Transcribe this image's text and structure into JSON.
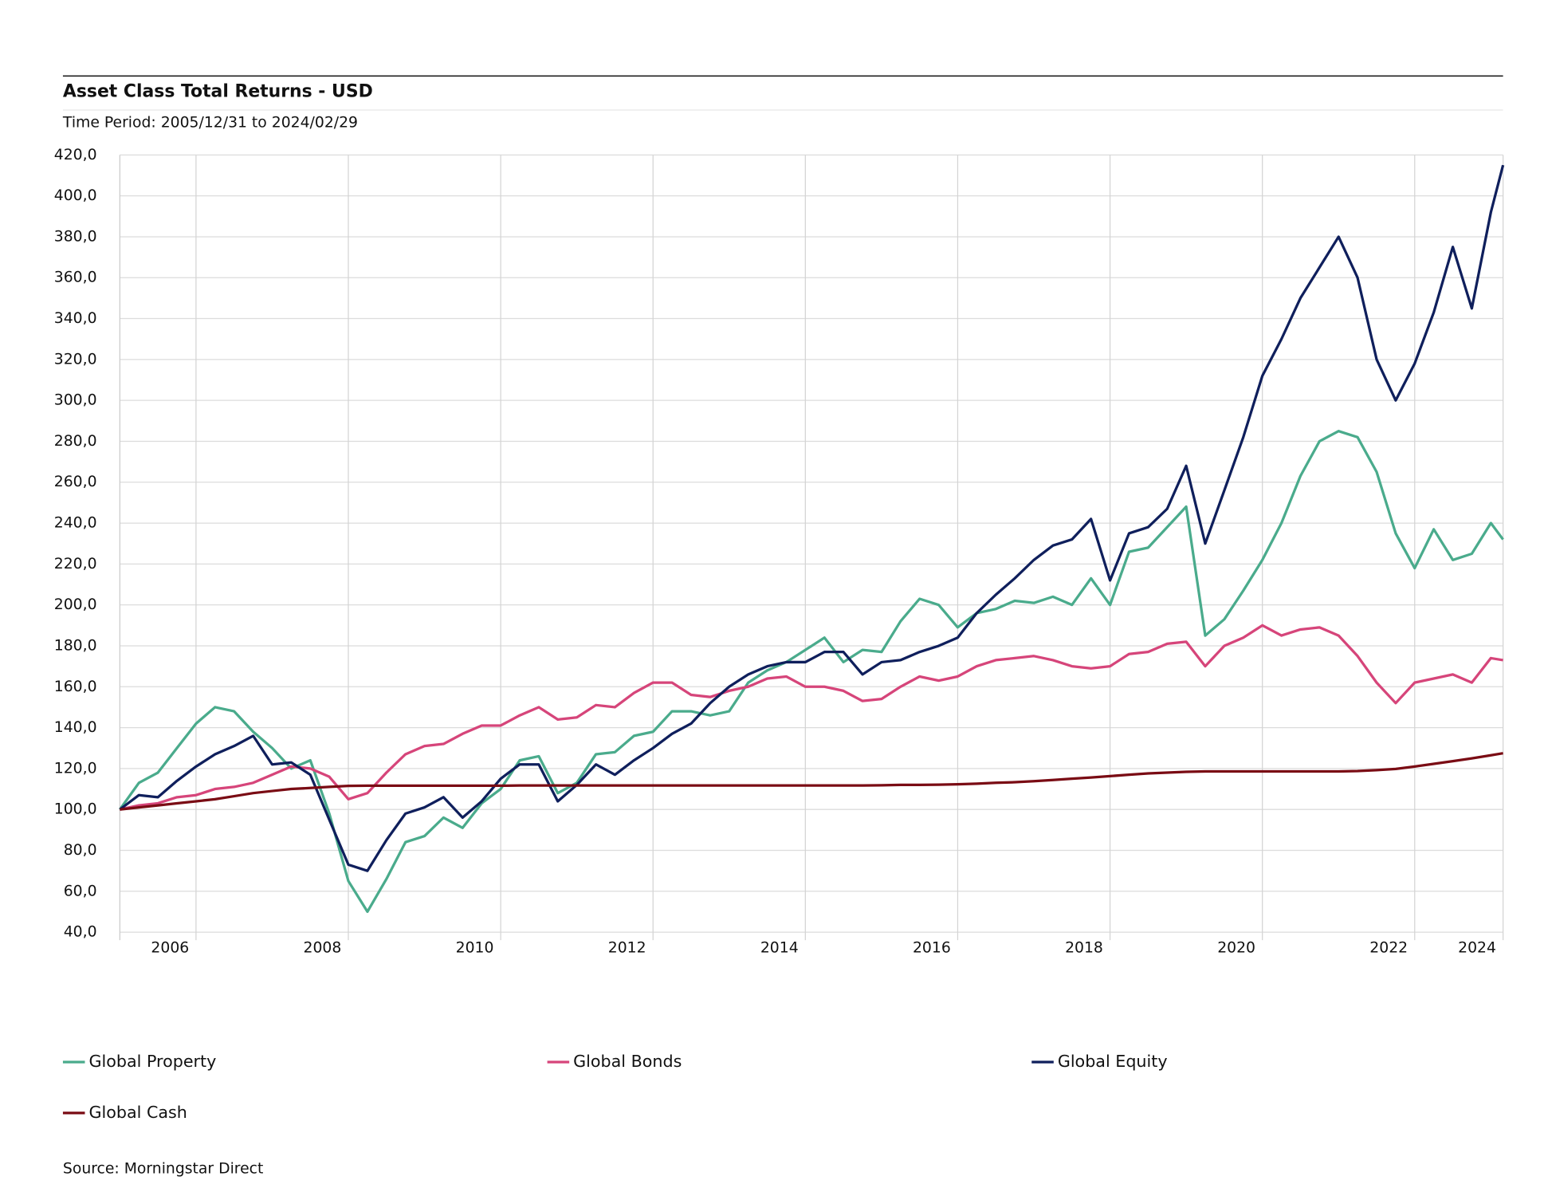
{
  "chart_data": {
    "type": "line",
    "title": "Asset Class Total Returns - USD",
    "subtitle": "Time Period: 2005/12/31 to 2024/02/29",
    "source": "Source: Morningstar Direct",
    "x": [
      2006,
      2006.25,
      2006.5,
      2006.75,
      2007,
      2007.25,
      2007.5,
      2007.75,
      2008,
      2008.25,
      2008.5,
      2008.75,
      2009,
      2009.25,
      2009.5,
      2009.75,
      2010,
      2010.25,
      2010.5,
      2010.75,
      2011,
      2011.25,
      2011.5,
      2011.75,
      2012,
      2012.25,
      2012.5,
      2012.75,
      2013,
      2013.25,
      2013.5,
      2013.75,
      2014,
      2014.25,
      2014.5,
      2014.75,
      2015,
      2015.25,
      2015.5,
      2015.75,
      2016,
      2016.25,
      2016.5,
      2016.75,
      2017,
      2017.25,
      2017.5,
      2017.75,
      2018,
      2018.25,
      2018.5,
      2018.75,
      2019,
      2019.25,
      2019.5,
      2019.75,
      2020,
      2020.25,
      2020.5,
      2020.75,
      2021,
      2021.25,
      2021.5,
      2021.75,
      2022,
      2022.25,
      2022.5,
      2022.75,
      2023,
      2023.25,
      2023.5,
      2023.75,
      2024,
      2024.16
    ],
    "series": [
      {
        "name": "Global Property",
        "color": "#4aab8c",
        "values": [
          100,
          113,
          118,
          130,
          142,
          150,
          148,
          138,
          130,
          120,
          124,
          98,
          65,
          50,
          66,
          84,
          87,
          96,
          91,
          103,
          110,
          124,
          126,
          108,
          113,
          127,
          128,
          136,
          138,
          148,
          148,
          146,
          148,
          162,
          168,
          172,
          178,
          184,
          172,
          178,
          177,
          192,
          203,
          200,
          189,
          196,
          198,
          202,
          201,
          204,
          200,
          213,
          200,
          226,
          228,
          238,
          248,
          185,
          193,
          207,
          222,
          240,
          263,
          280,
          285,
          282,
          265,
          235,
          218,
          237,
          222,
          225,
          240,
          232
        ]
      },
      {
        "name": "Global Bonds",
        "color": "#d6457a",
        "values": [
          100,
          102,
          103,
          106,
          107,
          110,
          111,
          113,
          117,
          121,
          120,
          116,
          105,
          108,
          118,
          127,
          131,
          132,
          137,
          141,
          141,
          146,
          150,
          144,
          145,
          151,
          150,
          157,
          162,
          162,
          156,
          155,
          158,
          160,
          164,
          165,
          160,
          160,
          158,
          153,
          154,
          160,
          165,
          163,
          165,
          170,
          173,
          174,
          175,
          173,
          170,
          169,
          170,
          176,
          177,
          181,
          182,
          170,
          180,
          184,
          190,
          185,
          188,
          189,
          185,
          175,
          162,
          152,
          162,
          164,
          166,
          162,
          174,
          173
        ]
      },
      {
        "name": "Global Equity",
        "color": "#0f1f5c",
        "values": [
          100,
          107,
          106,
          114,
          121,
          127,
          131,
          136,
          122,
          123,
          117,
          95,
          73,
          70,
          85,
          98,
          101,
          106,
          96,
          104,
          115,
          122,
          122,
          104,
          112,
          122,
          117,
          124,
          130,
          137,
          142,
          152,
          160,
          166,
          170,
          172,
          172,
          177,
          177,
          166,
          172,
          173,
          177,
          180,
          184,
          196,
          205,
          213,
          222,
          229,
          232,
          242,
          212,
          235,
          238,
          247,
          268,
          230,
          256,
          282,
          312,
          330,
          350,
          365,
          380,
          360,
          320,
          300,
          318,
          343,
          375,
          345,
          392,
          415
        ]
      },
      {
        "name": "Global Cash",
        "color": "#7a0c14",
        "values": [
          100,
          101,
          102,
          103,
          104,
          105,
          106.5,
          108,
          109,
          110,
          110.5,
          111,
          111.5,
          111.6,
          111.6,
          111.6,
          111.6,
          111.6,
          111.6,
          111.6,
          111.6,
          111.7,
          111.7,
          111.7,
          111.7,
          111.7,
          111.7,
          111.7,
          111.7,
          111.7,
          111.7,
          111.7,
          111.7,
          111.7,
          111.7,
          111.7,
          111.7,
          111.7,
          111.7,
          111.7,
          111.8,
          112,
          112,
          112.1,
          112.3,
          112.6,
          113,
          113.3,
          113.8,
          114.4,
          115,
          115.6,
          116.3,
          117,
          117.6,
          118,
          118.4,
          118.6,
          118.6,
          118.6,
          118.6,
          118.6,
          118.6,
          118.6,
          118.6,
          118.8,
          119.2,
          119.8,
          121,
          122.3,
          123.6,
          125,
          126.5,
          127.5
        ]
      }
    ],
    "xlim": [
      2006,
      2024.16
    ],
    "xticks": [
      {
        "value": 2007,
        "label": "2006"
      },
      {
        "value": 2009,
        "label": "2008"
      },
      {
        "value": 2011,
        "label": "2010"
      },
      {
        "value": 2013,
        "label": "2012"
      },
      {
        "value": 2015,
        "label": "2014"
      },
      {
        "value": 2017,
        "label": "2016"
      },
      {
        "value": 2019,
        "label": "2018"
      },
      {
        "value": 2021,
        "label": "2020"
      },
      {
        "value": 2023,
        "label": "2022"
      },
      {
        "value": 2024.16,
        "label": "2024"
      }
    ],
    "ylim": [
      40,
      420
    ],
    "yticks": [
      {
        "value": 40,
        "label": "40,0"
      },
      {
        "value": 60,
        "label": "60,0"
      },
      {
        "value": 80,
        "label": "80,0"
      },
      {
        "value": 100,
        "label": "100,0"
      },
      {
        "value": 120,
        "label": "120,0"
      },
      {
        "value": 140,
        "label": "140,0"
      },
      {
        "value": 160,
        "label": "160,0"
      },
      {
        "value": 180,
        "label": "180,0"
      },
      {
        "value": 200,
        "label": "200,0"
      },
      {
        "value": 220,
        "label": "220,0"
      },
      {
        "value": 240,
        "label": "240,0"
      },
      {
        "value": 260,
        "label": "260,0"
      },
      {
        "value": 280,
        "label": "280,0"
      },
      {
        "value": 300,
        "label": "300,0"
      },
      {
        "value": 320,
        "label": "320,0"
      },
      {
        "value": 340,
        "label": "340,0"
      },
      {
        "value": 360,
        "label": "360,0"
      },
      {
        "value": 380,
        "label": "380,0"
      },
      {
        "value": 400,
        "label": "400,0"
      },
      {
        "value": 420,
        "label": "420,0"
      }
    ],
    "grid": true
  }
}
